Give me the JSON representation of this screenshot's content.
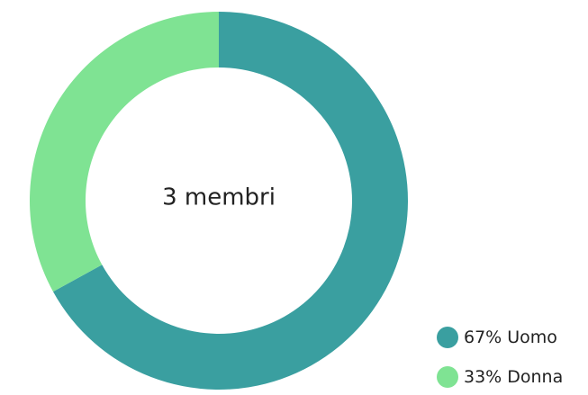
{
  "chart_data": {
    "type": "donut",
    "center_text": "3 membri",
    "categories": [
      "Uomo",
      "Donna"
    ],
    "values": [
      67,
      33
    ],
    "value_labels": [
      "67%",
      "33%"
    ],
    "colors": [
      "#3a9fa0",
      "#7fe393"
    ],
    "legend": "bottom-right"
  }
}
